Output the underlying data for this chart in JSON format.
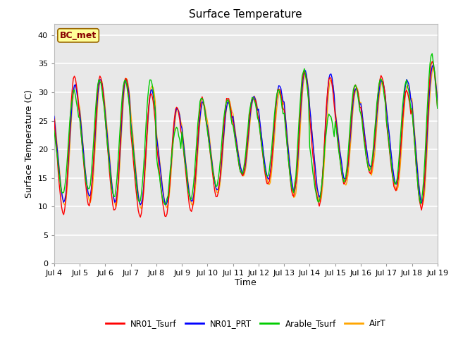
{
  "title": "Surface Temperature",
  "ylabel": "Surface Temperature (C)",
  "xlabel": "Time",
  "annotation": "BC_met",
  "ylim": [
    0,
    42
  ],
  "yticks": [
    0,
    5,
    10,
    15,
    20,
    25,
    30,
    35,
    40
  ],
  "colors": {
    "NR01_Tsurf": "#ff0000",
    "NR01_PRT": "#0000ff",
    "Arable_Tsurf": "#00cc00",
    "AirT": "#ffa500"
  },
  "legend_labels": [
    "NR01_Tsurf",
    "NR01_PRT",
    "Arable_Tsurf",
    "AirT"
  ],
  "fig_bg_color": "#ffffff",
  "plot_bg_color": "#e8e8e8",
  "grid_color": "#ffffff",
  "annotation_bg": "#ffff99",
  "annotation_edge": "#996600",
  "annotation_text_color": "#880000",
  "n_points": 361,
  "start_day": 4,
  "end_day": 19,
  "day_maxes_NR": [
    32.5,
    32.5,
    32.2,
    29.5,
    27.2,
    28.5,
    28.8,
    29.0,
    30.5,
    33.5,
    32.5,
    31.0,
    32.5,
    30.0,
    35.0
  ],
  "day_mins_NR": [
    9.0,
    10.5,
    9.5,
    8.5,
    8.5,
    9.5,
    12.0,
    15.5,
    14.0,
    12.0,
    10.5,
    14.0,
    16.0,
    13.0,
    10.0
  ],
  "day_maxes_PRT": [
    31.0,
    32.0,
    32.0,
    30.0,
    27.0,
    28.0,
    28.0,
    29.0,
    31.0,
    33.5,
    33.0,
    30.5,
    32.0,
    32.0,
    34.5
  ],
  "day_mins_PRT": [
    11.0,
    12.0,
    11.0,
    10.5,
    10.5,
    11.0,
    13.0,
    16.0,
    15.0,
    13.0,
    12.0,
    15.0,
    17.0,
    14.0,
    11.0
  ],
  "day_maxes_AR": [
    30.0,
    32.0,
    32.0,
    32.0,
    23.5,
    29.0,
    28.5,
    29.0,
    30.0,
    33.5,
    26.0,
    31.0,
    32.0,
    31.5,
    36.0
  ],
  "day_mins_AR": [
    12.5,
    13.0,
    12.0,
    11.0,
    10.5,
    11.5,
    14.0,
    16.0,
    15.5,
    13.0,
    11.0,
    14.5,
    16.5,
    14.0,
    11.0
  ],
  "day_maxes_AT": [
    31.0,
    32.0,
    32.0,
    31.0,
    27.0,
    28.0,
    28.5,
    29.0,
    30.0,
    33.0,
    32.0,
    30.5,
    31.5,
    31.0,
    34.0
  ],
  "day_mins_AT": [
    10.5,
    11.0,
    10.5,
    10.0,
    10.0,
    10.5,
    12.5,
    15.5,
    14.0,
    12.0,
    11.0,
    14.0,
    16.0,
    13.0,
    10.5
  ]
}
